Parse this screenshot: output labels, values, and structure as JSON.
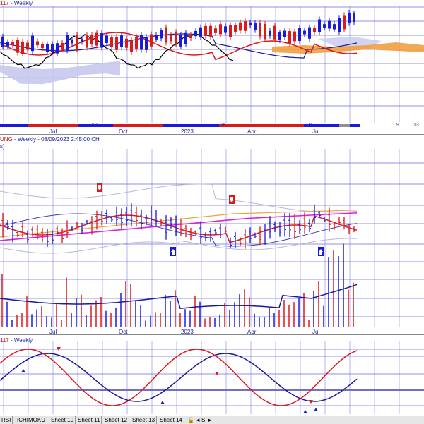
{
  "panel_top": {
    "title_code": "117",
    "title_period": "- Weekly",
    "x_labels": [
      "Jul",
      "Oct",
      "2023",
      "Apr",
      "Jul"
    ],
    "band_numbers": [
      "52",
      "26",
      "9",
      "9",
      "13"
    ]
  },
  "panel_mid": {
    "title_symbol": "UNG",
    "title_period": "- Weekly",
    "title_date": "- 08/09/2023 2:45:00 CH",
    "sub_label": "s)",
    "x_labels": [
      "Jul",
      "Oct",
      "2023",
      "Apr",
      "Jul"
    ]
  },
  "panel_bottom": {
    "title_code": "117",
    "title_period": "- Weekly"
  },
  "tabs": [
    "RSI",
    "ICHIMOKU",
    "Sheet 10",
    "Sheet 11",
    "Sheet 12",
    "Sheet 13",
    "Sheet 14"
  ],
  "tab_controls": [
    "◄",
    "S",
    "►"
  ],
  "colors": {
    "up": "#1a1adc",
    "down": "#dc1a1a",
    "grid": "#6e6edc",
    "cloud": "#c8c8ee",
    "cloud_future": "#f0a040",
    "magenta": "#e020e0",
    "orange": "#f0a040"
  }
}
